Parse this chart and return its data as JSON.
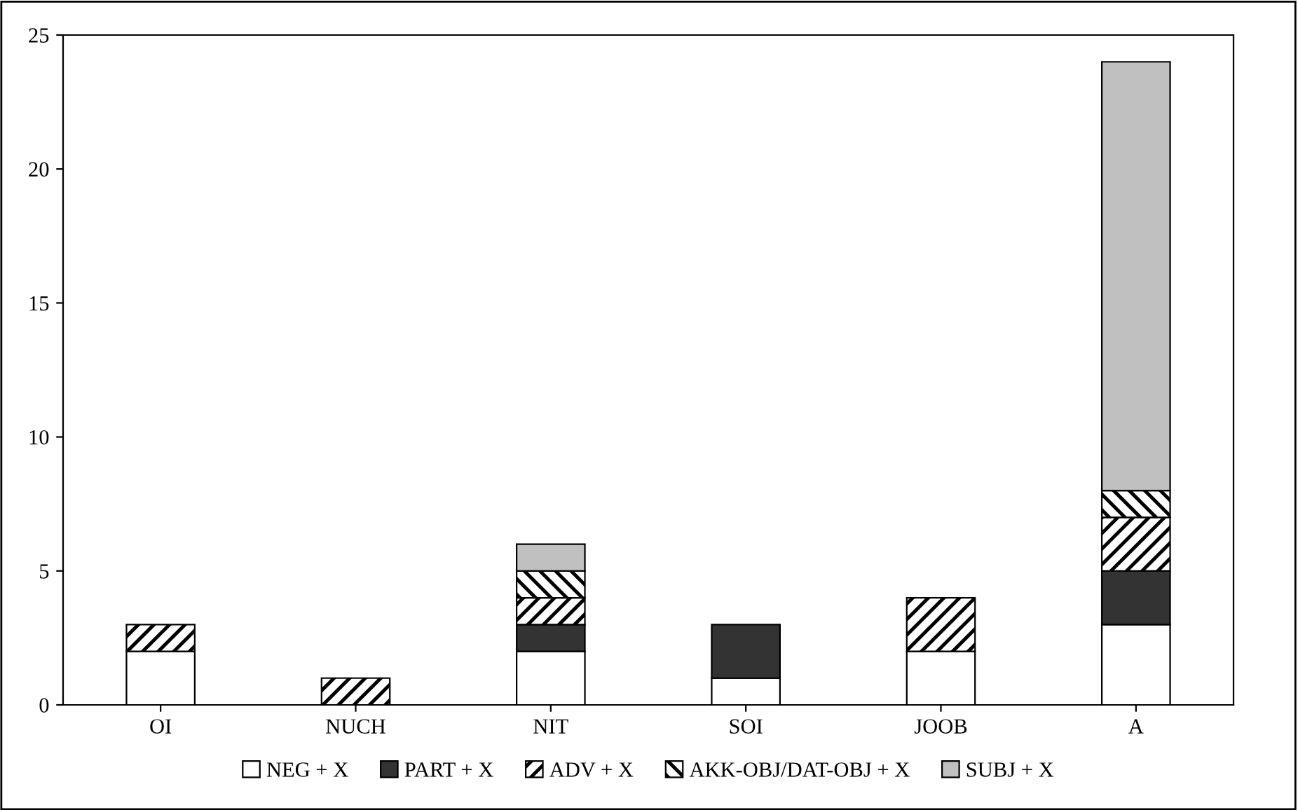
{
  "chart_data": {
    "type": "bar",
    "stacked": true,
    "categories": [
      "OI",
      "NUCH",
      "NIT",
      "SOI",
      "JOOB",
      "A"
    ],
    "series": [
      {
        "name": "NEG + X",
        "color": "#ffffff",
        "values": [
          2,
          null,
          2,
          1,
          2,
          3
        ]
      },
      {
        "name": "PART + X",
        "color": "#333333",
        "values": [
          null,
          null,
          1,
          2,
          null,
          2
        ]
      },
      {
        "name": "ADV + X",
        "color": "#000000",
        "values": [
          1,
          1,
          1,
          null,
          2,
          2
        ]
      },
      {
        "name": "AKK-OBJ/DAT-OBJ + X",
        "color": "#000000",
        "values": [
          null,
          null,
          1,
          null,
          null,
          1
        ]
      },
      {
        "name": "SUBJ + X",
        "color": "#c0c0c0",
        "values": [
          null,
          null,
          1,
          null,
          null,
          16
        ]
      }
    ],
    "ylim": [
      0,
      25
    ],
    "yticks": [
      0,
      5,
      10,
      15,
      20,
      25
    ],
    "grid": false,
    "legend": "bottom"
  }
}
